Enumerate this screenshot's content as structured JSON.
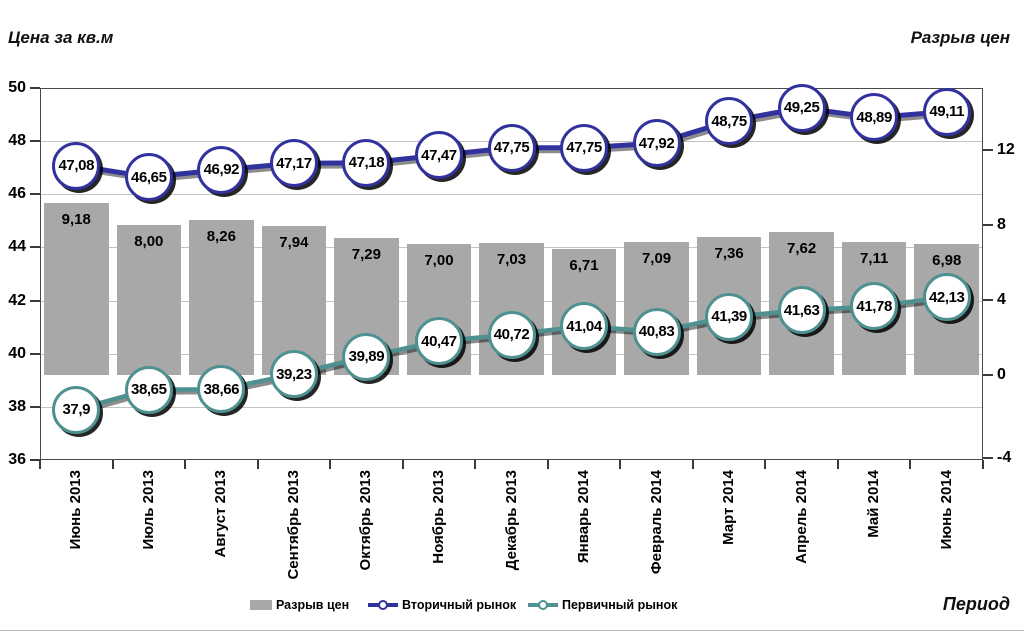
{
  "titles": {
    "left": "Цена за кв.м",
    "right": "Разрыв цен",
    "xlabel": "Период"
  },
  "legend": [
    {
      "label": "Разрыв цен",
      "type": "bar",
      "color": "#a8a8a8"
    },
    {
      "label": "Вторичный рынок",
      "type": "line",
      "color": "#32329e"
    },
    {
      "label": "Первичный рынок",
      "type": "line",
      "color": "#4f9191"
    }
  ],
  "chart_data": {
    "type": "combo-bar-line",
    "categories": [
      "Июнь 2013",
      "Июль 2013",
      "Август 2013",
      "Сентябрь 2013",
      "Октябрь 2013",
      "Ноябрь 2013",
      "Декабрь 2013",
      "Январь 2014",
      "Февраль 2014",
      "Март 2014",
      "Апрель 2014",
      "Май 2014",
      "Июнь 2014"
    ],
    "series": [
      {
        "name": "Разрыв цен",
        "type": "bar",
        "axis": "right",
        "color": "#a8a8a8",
        "values": [
          9.18,
          8.0,
          8.26,
          7.94,
          7.29,
          7.0,
          7.03,
          6.71,
          7.09,
          7.36,
          7.62,
          7.11,
          6.98
        ],
        "labels": [
          "9,18",
          "8,00",
          "8,26",
          "7,94",
          "7,29",
          "7,00",
          "7,03",
          "6,71",
          "7,09",
          "7,36",
          "7,62",
          "7,11",
          "6,98"
        ]
      },
      {
        "name": "Вторичный рынок",
        "type": "line",
        "axis": "left",
        "color": "#32329e",
        "values": [
          47.08,
          46.65,
          46.92,
          47.17,
          47.18,
          47.47,
          47.75,
          47.75,
          47.92,
          48.75,
          49.25,
          48.89,
          49.11
        ],
        "labels": [
          "47,08",
          "46,65",
          "46,92",
          "47,17",
          "47,18",
          "47,47",
          "47,75",
          "47,75",
          "47,92",
          "48,75",
          "49,25",
          "48,89",
          "49,11"
        ]
      },
      {
        "name": "Первичный рынок",
        "type": "line",
        "axis": "left",
        "color": "#4f9191",
        "values": [
          37.9,
          38.65,
          38.66,
          39.23,
          39.89,
          40.47,
          40.72,
          41.04,
          40.83,
          41.39,
          41.63,
          41.78,
          42.13
        ],
        "labels": [
          "37,9",
          "38,65",
          "38,66",
          "39,23",
          "39,89",
          "40,47",
          "40,72",
          "41,04",
          "40,83",
          "41,39",
          "41,63",
          "41,78",
          "42,13"
        ]
      }
    ],
    "left_axis": {
      "title": "Цена за кв.м",
      "ticks": [
        50,
        48,
        46,
        44,
        42,
        40,
        38,
        36
      ],
      "range": [
        36,
        50
      ]
    },
    "right_axis": {
      "title": "Разрыв цен",
      "ticks": [
        12,
        8,
        4,
        0,
        -4
      ],
      "zero_at_left_value": 39.2
    },
    "x_axis": {
      "title": "Период"
    },
    "grid": true,
    "legend_position": "bottom"
  }
}
